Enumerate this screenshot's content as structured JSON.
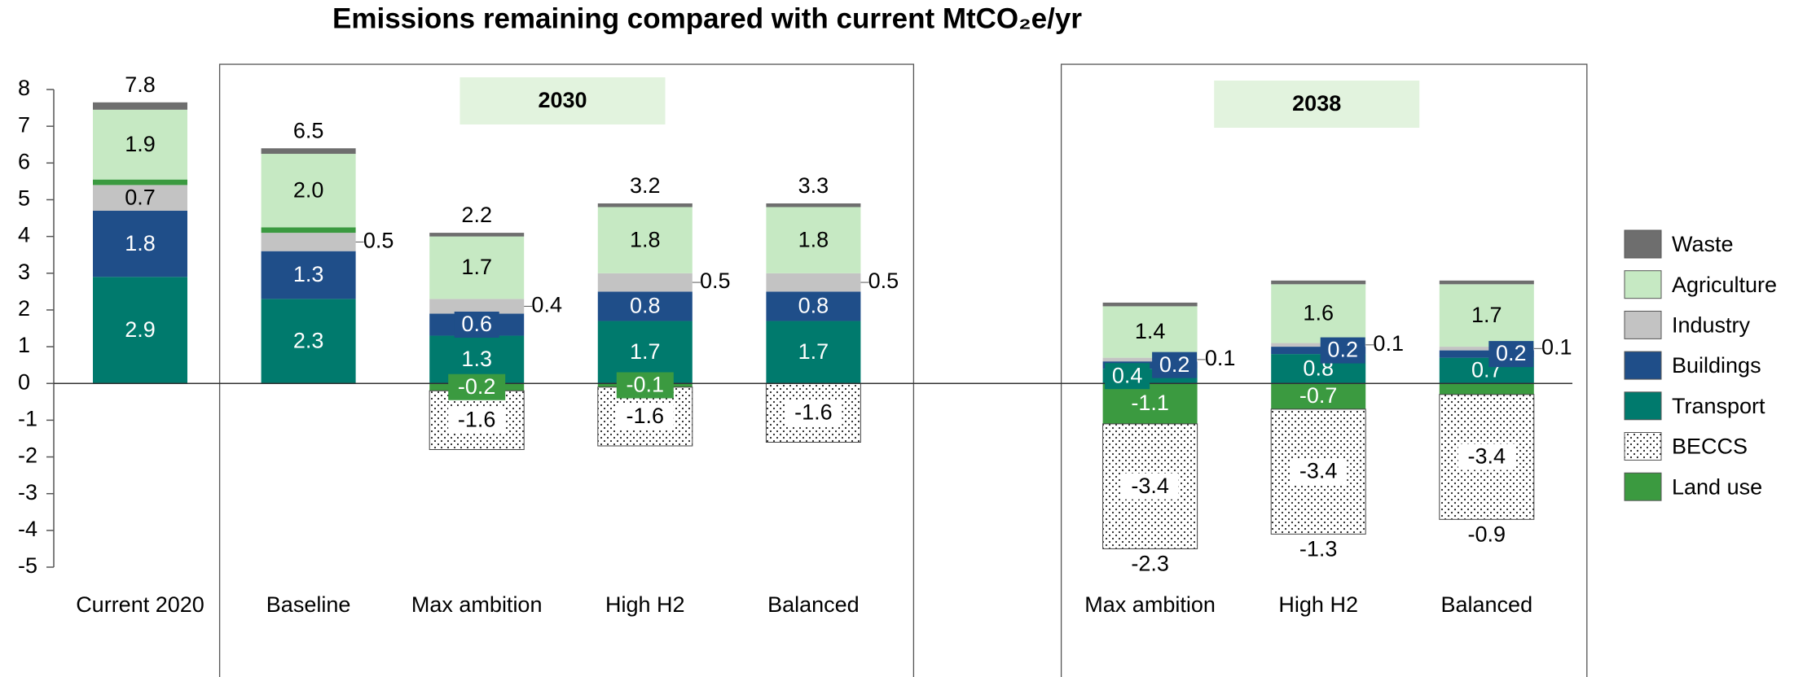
{
  "chart_data": {
    "type": "stacked-bar",
    "title": "Emissions remaining compared with current MtCO₂e/yr",
    "categories": [
      "Current 2020",
      "Baseline",
      "Max ambition",
      "High H2",
      "Balanced",
      null,
      "Max ambition",
      "High H2",
      "Balanced"
    ],
    "groups": [
      {
        "label": "2030",
        "from": 1,
        "to": 4
      },
      {
        "label": "2038",
        "from": 6,
        "to": 8
      }
    ],
    "ylim": [
      -5,
      8
    ],
    "yticks": [
      -5,
      -4,
      -3,
      -2,
      -1,
      0,
      1,
      2,
      3,
      4,
      5,
      6,
      7,
      8
    ],
    "legend": "right",
    "series": [
      {
        "name": "Waste",
        "color": "#6e6e6e",
        "values": [
          0.2,
          0.15,
          0.1,
          0.1,
          0.1,
          null,
          0.1,
          0.1,
          0.1
        ],
        "value_labels": [
          null,
          null,
          null,
          null,
          null,
          null,
          null,
          null,
          null
        ]
      },
      {
        "name": "Agriculture",
        "color": "#c6e9c3",
        "values": [
          1.9,
          2.0,
          1.7,
          1.8,
          1.8,
          null,
          1.4,
          1.6,
          1.7
        ],
        "value_labels": [
          "1.9",
          "2.0",
          "1.7",
          "1.8",
          "1.8",
          null,
          "1.4",
          "1.6",
          "1.7"
        ]
      },
      {
        "name": "Industry",
        "color": "#c3c3c3",
        "values": [
          0.7,
          0.5,
          0.4,
          0.5,
          0.5,
          null,
          0.1,
          0.1,
          0.1
        ],
        "value_labels": [
          "0.7",
          "0.5",
          "0.4",
          "0.5",
          "0.5",
          null,
          "0.1",
          "0.1",
          "0.1"
        ]
      },
      {
        "name": "Buildings",
        "color": "#1f4e89",
        "values": [
          1.8,
          1.3,
          0.6,
          0.8,
          0.8,
          null,
          0.2,
          0.2,
          0.2
        ],
        "value_labels": [
          "1.8",
          "1.3",
          "0.6",
          "0.8",
          "0.8",
          null,
          "0.2",
          "0.2",
          "0.2"
        ]
      },
      {
        "name": "Transport",
        "color": "#007a6d",
        "values": [
          2.9,
          2.3,
          1.3,
          1.7,
          1.7,
          null,
          0.4,
          0.8,
          0.7
        ],
        "value_labels": [
          "2.9",
          "2.3",
          "1.3",
          "1.7",
          "1.7",
          null,
          "0.4",
          "0.8",
          "0.7"
        ]
      },
      {
        "name": "BECCS",
        "color": "#ffffff",
        "pattern": "dotted",
        "values": [
          null,
          null,
          -1.6,
          -1.6,
          -1.6,
          null,
          -3.4,
          -3.4,
          -3.4
        ],
        "value_labels": [
          null,
          null,
          "-1.6",
          "-1.6",
          "-1.6",
          null,
          "-3.4",
          "-3.4",
          "-3.4"
        ]
      },
      {
        "name": "Land use",
        "color": "#3b9a40",
        "values": [
          0.15,
          0.15,
          -0.2,
          -0.1,
          null,
          null,
          -1.1,
          -0.7,
          -0.3
        ],
        "value_labels": [
          null,
          null,
          "-0.2",
          "-0.1",
          null,
          null,
          "-1.1",
          "-0.7",
          null
        ]
      }
    ],
    "totals": [
      7.8,
      6.5,
      2.2,
      3.2,
      3.3,
      null,
      -2.3,
      -1.3,
      -0.9
    ]
  }
}
